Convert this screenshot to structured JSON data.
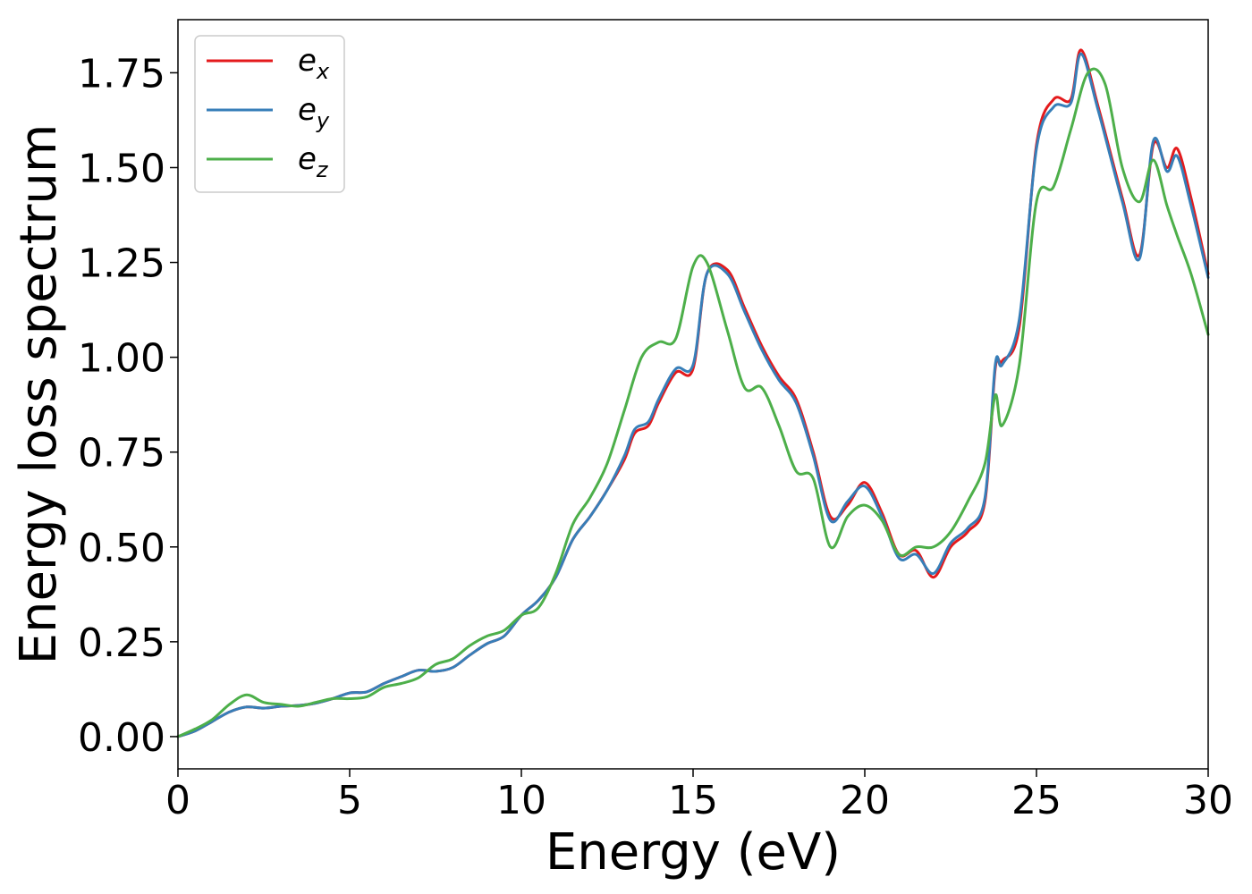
{
  "chart_data": {
    "type": "line",
    "xlabel": "Energy (eV)",
    "ylabel": "Energy loss spectrum",
    "xlim": [
      0,
      30
    ],
    "ylim": [
      -0.085,
      1.89
    ],
    "grid": false,
    "legend_position": "top-left",
    "x_ticks": [
      0,
      5,
      10,
      15,
      20,
      25,
      30
    ],
    "x_tick_labels": [
      "0",
      "5",
      "10",
      "15",
      "20",
      "25",
      "30"
    ],
    "y_ticks": [
      0,
      0.25,
      0.5,
      0.75,
      1.0,
      1.25,
      1.5,
      1.75
    ],
    "y_tick_labels": [
      "0.00",
      "0.25",
      "0.50",
      "0.75",
      "1.00",
      "1.25",
      "1.50",
      "1.75"
    ],
    "series": [
      {
        "name": "e_x",
        "base": "e",
        "sub": "x",
        "color": "#e41a1c",
        "points": [
          [
            0,
            0
          ],
          [
            0.5,
            0.015
          ],
          [
            1,
            0.04
          ],
          [
            1.5,
            0.065
          ],
          [
            2,
            0.078
          ],
          [
            2.5,
            0.075
          ],
          [
            3,
            0.08
          ],
          [
            3.5,
            0.082
          ],
          [
            4,
            0.088
          ],
          [
            4.5,
            0.1
          ],
          [
            5,
            0.115
          ],
          [
            5.5,
            0.118
          ],
          [
            6,
            0.14
          ],
          [
            6.5,
            0.158
          ],
          [
            7,
            0.175
          ],
          [
            7.5,
            0.172
          ],
          [
            8,
            0.182
          ],
          [
            8.5,
            0.215
          ],
          [
            9,
            0.245
          ],
          [
            9.5,
            0.265
          ],
          [
            10,
            0.32
          ],
          [
            10.5,
            0.36
          ],
          [
            11,
            0.42
          ],
          [
            11.5,
            0.52
          ],
          [
            12,
            0.58
          ],
          [
            12.5,
            0.65
          ],
          [
            13,
            0.73
          ],
          [
            13.3,
            0.8
          ],
          [
            13.7,
            0.82
          ],
          [
            14,
            0.88
          ],
          [
            14.5,
            0.96
          ],
          [
            15,
            0.97
          ],
          [
            15.4,
            1.22
          ],
          [
            16,
            1.23
          ],
          [
            16.5,
            1.13
          ],
          [
            17,
            1.03
          ],
          [
            17.5,
            0.95
          ],
          [
            18,
            0.89
          ],
          [
            18.5,
            0.75
          ],
          [
            19,
            0.58
          ],
          [
            19.5,
            0.61
          ],
          [
            20,
            0.67
          ],
          [
            20.5,
            0.59
          ],
          [
            21,
            0.48
          ],
          [
            21.5,
            0.49
          ],
          [
            22,
            0.42
          ],
          [
            22.5,
            0.5
          ],
          [
            23,
            0.54
          ],
          [
            23.5,
            0.62
          ],
          [
            23.8,
            0.97
          ],
          [
            24,
            0.99
          ],
          [
            24.5,
            1.08
          ],
          [
            25,
            1.56
          ],
          [
            25.5,
            1.68
          ],
          [
            26,
            1.68
          ],
          [
            26.3,
            1.81
          ],
          [
            26.8,
            1.66
          ],
          [
            27.5,
            1.42
          ],
          [
            28,
            1.27
          ],
          [
            28.4,
            1.56
          ],
          [
            28.8,
            1.5
          ],
          [
            29.1,
            1.55
          ],
          [
            29.5,
            1.42
          ],
          [
            30,
            1.22
          ]
        ]
      },
      {
        "name": "e_y",
        "base": "e",
        "sub": "y",
        "color": "#377eb8",
        "points": [
          [
            0,
            0
          ],
          [
            0.5,
            0.015
          ],
          [
            1,
            0.04
          ],
          [
            1.5,
            0.065
          ],
          [
            2,
            0.078
          ],
          [
            2.5,
            0.075
          ],
          [
            3,
            0.08
          ],
          [
            3.5,
            0.082
          ],
          [
            4,
            0.088
          ],
          [
            4.5,
            0.1
          ],
          [
            5,
            0.115
          ],
          [
            5.5,
            0.118
          ],
          [
            6,
            0.14
          ],
          [
            6.5,
            0.158
          ],
          [
            7,
            0.175
          ],
          [
            7.5,
            0.172
          ],
          [
            8,
            0.182
          ],
          [
            8.5,
            0.215
          ],
          [
            9,
            0.245
          ],
          [
            9.5,
            0.265
          ],
          [
            10,
            0.32
          ],
          [
            10.5,
            0.36
          ],
          [
            11,
            0.42
          ],
          [
            11.5,
            0.52
          ],
          [
            12,
            0.58
          ],
          [
            12.5,
            0.65
          ],
          [
            13,
            0.74
          ],
          [
            13.3,
            0.81
          ],
          [
            13.7,
            0.83
          ],
          [
            14,
            0.89
          ],
          [
            14.5,
            0.97
          ],
          [
            15,
            0.98
          ],
          [
            15.4,
            1.22
          ],
          [
            16,
            1.22
          ],
          [
            16.5,
            1.12
          ],
          [
            17,
            1.02
          ],
          [
            17.5,
            0.94
          ],
          [
            18,
            0.88
          ],
          [
            18.5,
            0.74
          ],
          [
            19,
            0.57
          ],
          [
            19.5,
            0.62
          ],
          [
            20,
            0.66
          ],
          [
            20.5,
            0.58
          ],
          [
            21,
            0.47
          ],
          [
            21.5,
            0.48
          ],
          [
            22,
            0.43
          ],
          [
            22.5,
            0.51
          ],
          [
            23,
            0.55
          ],
          [
            23.5,
            0.63
          ],
          [
            23.8,
            0.98
          ],
          [
            24,
            0.98
          ],
          [
            24.5,
            1.1
          ],
          [
            25,
            1.55
          ],
          [
            25.5,
            1.66
          ],
          [
            26,
            1.67
          ],
          [
            26.3,
            1.8
          ],
          [
            26.8,
            1.65
          ],
          [
            27.5,
            1.41
          ],
          [
            28,
            1.26
          ],
          [
            28.4,
            1.57
          ],
          [
            28.8,
            1.49
          ],
          [
            29.1,
            1.53
          ],
          [
            29.5,
            1.4
          ],
          [
            30,
            1.21
          ]
        ]
      },
      {
        "name": "e_z",
        "base": "e",
        "sub": "z",
        "color": "#4daf4a",
        "points": [
          [
            0,
            0
          ],
          [
            0.5,
            0.02
          ],
          [
            1,
            0.045
          ],
          [
            1.5,
            0.085
          ],
          [
            2,
            0.11
          ],
          [
            2.5,
            0.09
          ],
          [
            3,
            0.085
          ],
          [
            3.5,
            0.08
          ],
          [
            4,
            0.09
          ],
          [
            4.5,
            0.1
          ],
          [
            5,
            0.1
          ],
          [
            5.5,
            0.105
          ],
          [
            6,
            0.13
          ],
          [
            6.5,
            0.14
          ],
          [
            7,
            0.155
          ],
          [
            7.5,
            0.19
          ],
          [
            8,
            0.205
          ],
          [
            8.5,
            0.24
          ],
          [
            9,
            0.265
          ],
          [
            9.5,
            0.28
          ],
          [
            10,
            0.32
          ],
          [
            10.5,
            0.34
          ],
          [
            11,
            0.43
          ],
          [
            11.5,
            0.56
          ],
          [
            12,
            0.63
          ],
          [
            12.5,
            0.72
          ],
          [
            13,
            0.86
          ],
          [
            13.5,
            1.0
          ],
          [
            14,
            1.04
          ],
          [
            14.5,
            1.05
          ],
          [
            15,
            1.24
          ],
          [
            15.4,
            1.25
          ],
          [
            16,
            1.07
          ],
          [
            16.5,
            0.92
          ],
          [
            17,
            0.92
          ],
          [
            17.5,
            0.82
          ],
          [
            18,
            0.7
          ],
          [
            18.5,
            0.68
          ],
          [
            19,
            0.5
          ],
          [
            19.5,
            0.58
          ],
          [
            20,
            0.61
          ],
          [
            20.5,
            0.57
          ],
          [
            21,
            0.48
          ],
          [
            21.5,
            0.5
          ],
          [
            22,
            0.5
          ],
          [
            22.5,
            0.54
          ],
          [
            23,
            0.62
          ],
          [
            23.5,
            0.72
          ],
          [
            23.8,
            0.9
          ],
          [
            24,
            0.82
          ],
          [
            24.5,
            0.98
          ],
          [
            25,
            1.41
          ],
          [
            25.5,
            1.45
          ],
          [
            26,
            1.6
          ],
          [
            26.5,
            1.75
          ],
          [
            27,
            1.72
          ],
          [
            27.5,
            1.5
          ],
          [
            28,
            1.41
          ],
          [
            28.4,
            1.52
          ],
          [
            28.8,
            1.4
          ],
          [
            29.1,
            1.32
          ],
          [
            29.5,
            1.22
          ],
          [
            30,
            1.06
          ]
        ]
      }
    ]
  }
}
